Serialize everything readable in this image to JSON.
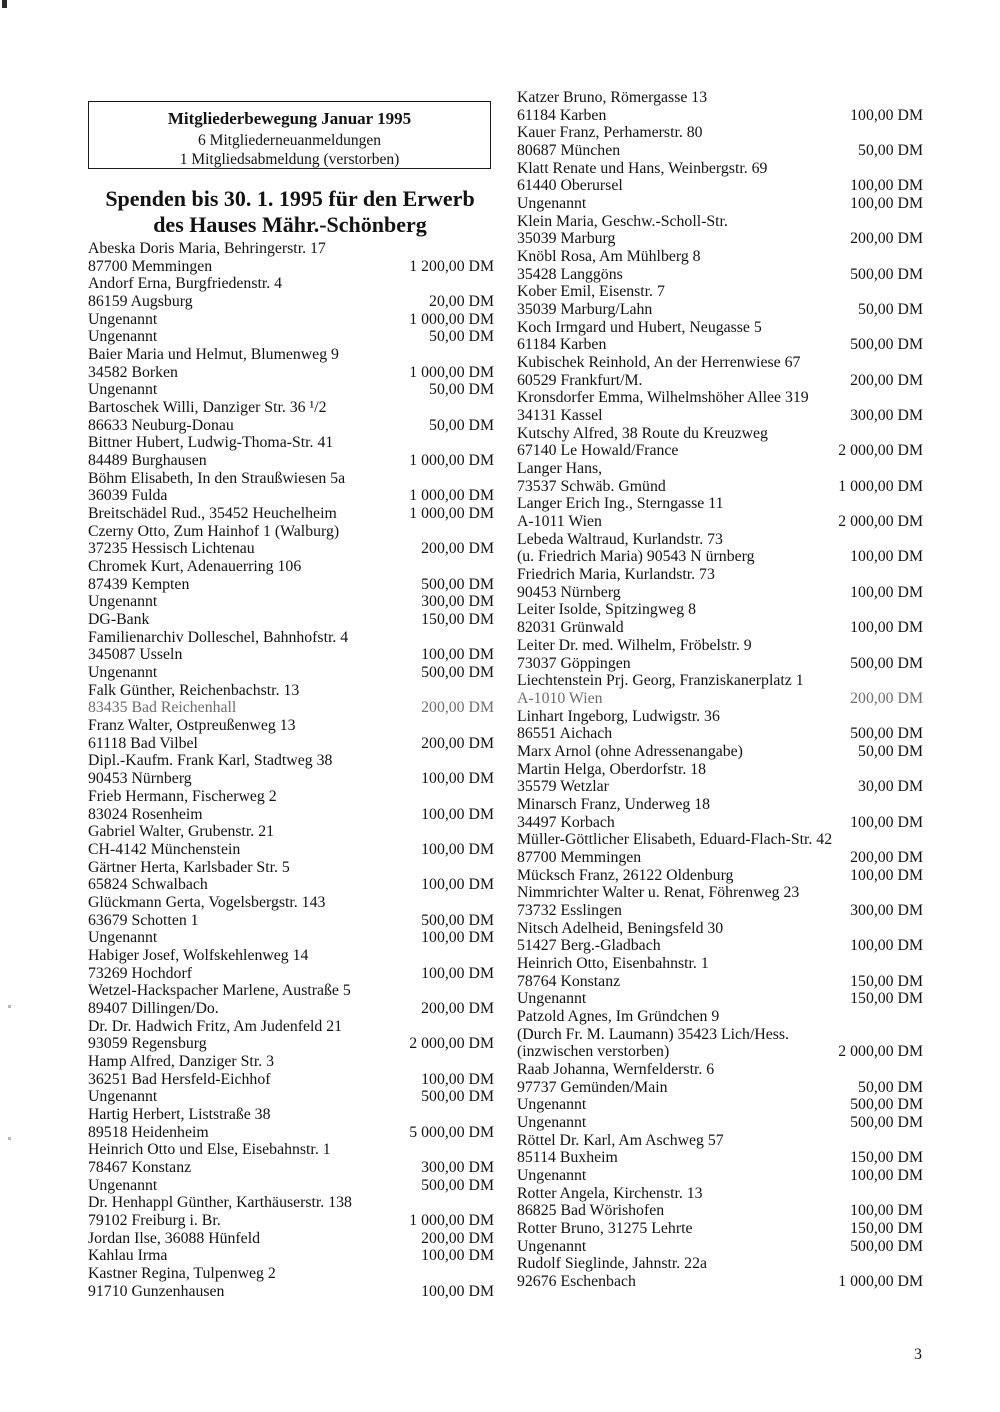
{
  "page": {
    "number": "3"
  },
  "header_box": {
    "title": "Mitgliederbewegung Januar 1995",
    "lines": [
      "6 Mitgliederneuanmeldungen",
      "1 Mitgliedsabmeldung (verstorben)"
    ]
  },
  "section_title": {
    "line1": "Spenden bis 30. 1. 1995 für den Erwerb",
    "line2": "des Hauses Mähr.-Schönberg"
  },
  "left_column": {
    "rows": [
      {
        "text": "Abeska Doris Maria, Behringerstr. 17",
        "amount": ""
      },
      {
        "text": "87700 Memmingen",
        "amount": "1 200,00 DM"
      },
      {
        "text": "Andorf Erna, Burgfriedenstr. 4",
        "amount": ""
      },
      {
        "text": "86159 Augsburg",
        "amount": "20,00 DM"
      },
      {
        "text": "Ungenannt",
        "amount": "1 000,00 DM"
      },
      {
        "text": "Ungenannt",
        "amount": "50,00 DM"
      },
      {
        "text": "Baier Maria und Helmut, Blumenweg 9",
        "amount": ""
      },
      {
        "text": "34582 Borken",
        "amount": "1 000,00 DM"
      },
      {
        "text": "Ungenannt",
        "amount": "50,00 DM"
      },
      {
        "text": "Bartoschek Willi, Danziger Str. 36 ¹/2",
        "amount": ""
      },
      {
        "text": "86633 Neuburg-Donau",
        "amount": "50,00 DM"
      },
      {
        "text": "Bittner Hubert, Ludwig-Thoma-Str. 41",
        "amount": ""
      },
      {
        "text": "84489 Burghausen",
        "amount": "1 000,00 DM"
      },
      {
        "text": "Böhm Elisabeth, In den Straußwiesen 5a",
        "amount": ""
      },
      {
        "text": "36039 Fulda",
        "amount": "1 000,00 DM"
      },
      {
        "text": "Breitschädel Rud., 35452 Heuchelheim",
        "amount": "1 000,00 DM"
      },
      {
        "text": "Czerny Otto, Zum Hainhof 1 (Walburg)",
        "amount": ""
      },
      {
        "text": "37235 Hessisch Lichtenau",
        "amount": "200,00 DM"
      },
      {
        "text": "Chromek Kurt, Adenauerring 106",
        "amount": ""
      },
      {
        "text": "87439 Kempten",
        "amount": "500,00 DM"
      },
      {
        "text": "Ungenannt",
        "amount": "300,00 DM"
      },
      {
        "text": "DG-Bank",
        "amount": "150,00 DM"
      },
      {
        "text": "Familienarchiv Dolleschel, Bahnhofstr. 4",
        "amount": ""
      },
      {
        "text": "345087 Usseln",
        "amount": "100,00 DM"
      },
      {
        "text": "Ungenannt",
        "amount": "500,00 DM"
      },
      {
        "text": "Falk Günther, Reichenbachstr. 13",
        "amount": ""
      },
      {
        "text": "83435 Bad Reichenhall",
        "amount": "200,00 DM",
        "light": true
      },
      {
        "text": "Franz Walter, Ostpreußenweg 13",
        "amount": ""
      },
      {
        "text": "61118 Bad Vilbel",
        "amount": "200,00 DM"
      },
      {
        "text": "Dipl.-Kaufm. Frank Karl, Stadtweg 38",
        "amount": ""
      },
      {
        "text": "90453 Nürnberg",
        "amount": "100,00 DM"
      },
      {
        "text": "Frieb Hermann, Fischerweg 2",
        "amount": ""
      },
      {
        "text": "83024 Rosenheim",
        "amount": "100,00 DM"
      },
      {
        "text": "Gabriel Walter, Grubenstr. 21",
        "amount": ""
      },
      {
        "text": "CH-4142 Münchenstein",
        "amount": "100,00 DM"
      },
      {
        "text": "Gärtner Herta, Karlsbader Str. 5",
        "amount": ""
      },
      {
        "text": "65824 Schwalbach",
        "amount": "100,00 DM"
      },
      {
        "text": "Glückmann Gerta, Vogelsbergstr. 143",
        "amount": ""
      },
      {
        "text": "63679 Schotten 1",
        "amount": "500,00 DM"
      },
      {
        "text": "Ungenannt",
        "amount": "100,00 DM"
      },
      {
        "text": "Habiger Josef, Wolfskehlenweg 14",
        "amount": ""
      },
      {
        "text": "73269 Hochdorf",
        "amount": "100,00 DM"
      },
      {
        "text": "Wetzel-Hackspacher Marlene, Austraße 5",
        "amount": ""
      },
      {
        "text": "89407 Dillingen/Do.",
        "amount": "200,00 DM"
      },
      {
        "text": "Dr. Dr. Hadwich Fritz, Am Judenfeld 21",
        "amount": ""
      },
      {
        "text": "93059 Regensburg",
        "amount": "2 000,00 DM"
      },
      {
        "text": "Hamp Alfred, Danziger Str. 3",
        "amount": ""
      },
      {
        "text": "36251 Bad Hersfeld-Eichhof",
        "amount": "100,00 DM"
      },
      {
        "text": "Ungenannt",
        "amount": "500,00 DM"
      },
      {
        "text": "Hartig Herbert, Liststraße 38",
        "amount": ""
      },
      {
        "text": "89518 Heidenheim",
        "amount": "5 000,00 DM"
      },
      {
        "text": "Heinrich Otto und Else, Eisebahnstr. 1",
        "amount": ""
      },
      {
        "text": "78467 Konstanz",
        "amount": "300,00 DM"
      },
      {
        "text": "Ungenannt",
        "amount": "500,00 DM"
      },
      {
        "text": "Dr. Henhappl Günther, Karthäuserstr. 138",
        "amount": ""
      },
      {
        "text": "79102 Freiburg i. Br.",
        "amount": "1 000,00 DM"
      },
      {
        "text": "Jordan Ilse, 36088 Hünfeld",
        "amount": "200,00 DM"
      },
      {
        "text": "Kahlau Irma",
        "amount": "100,00 DM"
      },
      {
        "text": "Kastner Regina, Tulpenweg 2",
        "amount": ""
      },
      {
        "text": "91710 Gunzenhausen",
        "amount": "100,00 DM"
      }
    ]
  },
  "right_column": {
    "rows": [
      {
        "text": "Katzer Bruno, Römergasse 13",
        "amount": ""
      },
      {
        "text": "61184 Karben",
        "amount": "100,00 DM"
      },
      {
        "text": "Kauer Franz, Perhamerstr. 80",
        "amount": ""
      },
      {
        "text": "80687 München",
        "amount": "50,00 DM"
      },
      {
        "text": "Klatt Renate und Hans, Weinbergstr. 69",
        "amount": ""
      },
      {
        "text": "61440 Oberursel",
        "amount": "100,00 DM"
      },
      {
        "text": "Ungenannt",
        "amount": "100,00 DM"
      },
      {
        "text": "Klein Maria, Geschw.-Scholl-Str.",
        "amount": ""
      },
      {
        "text": "35039 Marburg",
        "amount": "200,00 DM"
      },
      {
        "text": "Knöbl Rosa, Am Mühlberg 8",
        "amount": ""
      },
      {
        "text": "35428 Langgöns",
        "amount": "500,00 DM"
      },
      {
        "text": "Kober Emil, Eisenstr. 7",
        "amount": ""
      },
      {
        "text": "35039 Marburg/Lahn",
        "amount": "50,00 DM"
      },
      {
        "text": "Koch Irmgard und Hubert, Neugasse 5",
        "amount": ""
      },
      {
        "text": "61184 Karben",
        "amount": "500,00 DM"
      },
      {
        "text": "Kubischek Reinhold, An der Herrenwiese 67",
        "amount": ""
      },
      {
        "text": "60529 Frankfurt/M.",
        "amount": "200,00 DM"
      },
      {
        "text": "Kronsdorfer Emma, Wilhelmshöher Allee 319",
        "amount": ""
      },
      {
        "text": "34131 Kassel",
        "amount": "300,00 DM"
      },
      {
        "text": "Kutschy Alfred, 38 Route du Kreuzweg",
        "amount": ""
      },
      {
        "text": "67140 Le Howald/France",
        "amount": "2 000,00 DM"
      },
      {
        "text": "Langer Hans,",
        "amount": ""
      },
      {
        "text": "73537 Schwäb. Gmünd",
        "amount": "1 000,00 DM"
      },
      {
        "text": "Langer Erich Ing., Sterngasse 11",
        "amount": ""
      },
      {
        "text": "A-1011 Wien",
        "amount": "2 000,00 DM"
      },
      {
        "text": "Lebeda Waltraud, Kurlandstr. 73",
        "amount": ""
      },
      {
        "text": "(u. Friedrich Maria) 90543 N ürnberg",
        "amount": "100,00 DM"
      },
      {
        "text": "Friedrich Maria, Kurlandstr. 73",
        "amount": ""
      },
      {
        "text": "90453 Nürnberg",
        "amount": "100,00 DM"
      },
      {
        "text": "Leiter Isolde, Spitzingweg 8",
        "amount": ""
      },
      {
        "text": "82031 Grünwald",
        "amount": "100,00 DM"
      },
      {
        "text": "Leiter Dr. med. Wilhelm, Fröbelstr. 9",
        "amount": ""
      },
      {
        "text": "73037 Göppingen",
        "amount": "500,00 DM"
      },
      {
        "text": "Liechtenstein Prj. Georg, Franziskanerplatz 1",
        "amount": ""
      },
      {
        "text": "A-1010 Wien",
        "amount": "200,00 DM",
        "light": true
      },
      {
        "text": "Linhart Ingeborg, Ludwigstr. 36",
        "amount": ""
      },
      {
        "text": "86551 Aichach",
        "amount": "500,00 DM"
      },
      {
        "text": "Marx Arnol (ohne Adressenangabe)",
        "amount": "50,00 DM"
      },
      {
        "text": "Martin Helga, Oberdorfstr. 18",
        "amount": ""
      },
      {
        "text": "35579 Wetzlar",
        "amount": "30,00 DM"
      },
      {
        "text": "Minarsch Franz, Underweg 18",
        "amount": ""
      },
      {
        "text": "34497 Korbach",
        "amount": "100,00 DM"
      },
      {
        "text": "Müller-Göttlicher Elisabeth, Eduard-Flach-Str. 42",
        "amount": ""
      },
      {
        "text": "87700 Memmingen",
        "amount": "200,00 DM"
      },
      {
        "text": "Mücksch Franz, 26122 Oldenburg",
        "amount": "100,00 DM"
      },
      {
        "text": "Nimmrichter Walter u. Renat, Föhrenweg 23",
        "amount": ""
      },
      {
        "text": "73732 Esslingen",
        "amount": "300,00 DM"
      },
      {
        "text": "Nitsch Adelheid, Beningsfeld 30",
        "amount": ""
      },
      {
        "text": "51427 Berg.-Gladbach",
        "amount": "100,00 DM"
      },
      {
        "text": "Heinrich Otto, Eisenbahnstr. 1",
        "amount": ""
      },
      {
        "text": "78764 Konstanz",
        "amount": "150,00 DM"
      },
      {
        "text": "Ungenannt",
        "amount": "150,00 DM"
      },
      {
        "text": "Patzold Agnes, Im Gründchen 9",
        "amount": ""
      },
      {
        "text": "(Durch Fr. M. Laumann) 35423 Lich/Hess.",
        "amount": ""
      },
      {
        "text": "(inzwischen verstorben)",
        "amount": "2 000,00 DM"
      },
      {
        "text": "Raab Johanna, Wernfelderstr. 6",
        "amount": ""
      },
      {
        "text": "97737 Gemünden/Main",
        "amount": "50,00 DM"
      },
      {
        "text": "Ungenannt",
        "amount": "500,00 DM"
      },
      {
        "text": "Ungenannt",
        "amount": "500,00 DM"
      },
      {
        "text": "Röttel Dr. Karl, Am Aschweg 57",
        "amount": ""
      },
      {
        "text": "85114 Buxheim",
        "amount": "150,00 DM"
      },
      {
        "text": "Ungenannt",
        "amount": "100,00 DM"
      },
      {
        "text": "Rotter Angela, Kirchenstr. 13",
        "amount": ""
      },
      {
        "text": "86825 Bad Wörishofen",
        "amount": "100,00 DM"
      },
      {
        "text": "Rotter Bruno, 31275 Lehrte",
        "amount": "150,00 DM"
      },
      {
        "text": "Ungenannt",
        "amount": "500,00 DM"
      },
      {
        "text": "Rudolf Sieglinde, Jahnstr. 22a",
        "amount": ""
      },
      {
        "text": "92676 Eschenbach",
        "amount": "1 000,00 DM"
      }
    ]
  }
}
